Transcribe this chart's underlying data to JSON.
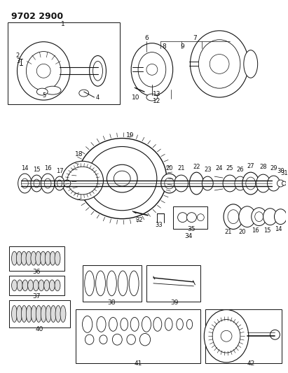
{
  "title": "9702 2900",
  "bg_color": "#ffffff",
  "figsize": [
    4.11,
    5.33
  ],
  "dpi": 100,
  "gray": "#888888",
  "dark": "#222222"
}
